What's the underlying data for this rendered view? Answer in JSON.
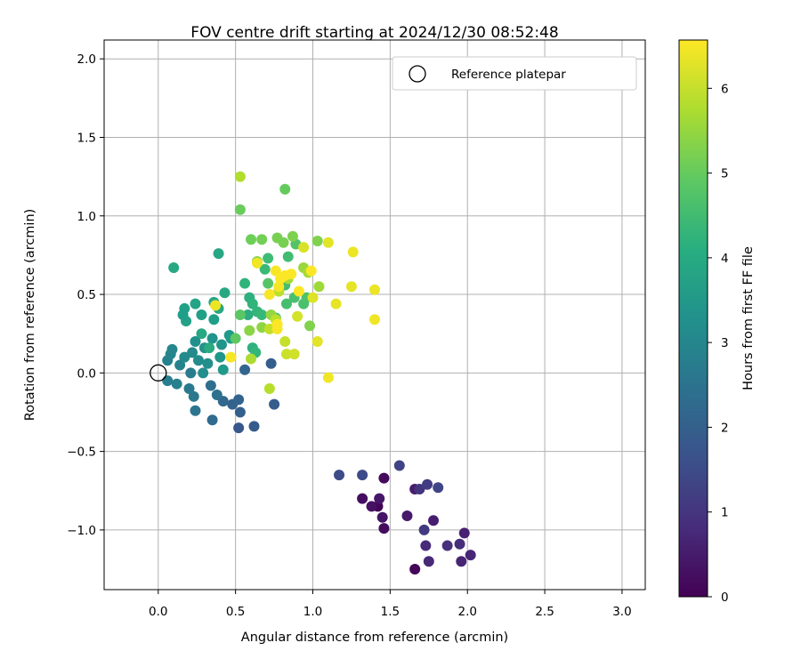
{
  "chart_data": {
    "type": "scatter",
    "title": "FOV centre drift starting at 2024/12/30 08:52:48",
    "xlabel": "Angular distance from reference (arcmin)",
    "ylabel": "Rotation from reference (arcmin)",
    "xlim": [
      -0.35,
      3.15
    ],
    "ylim": [
      -1.38,
      2.12
    ],
    "xticks": [
      {
        "value": 0.0,
        "label": "0.0"
      },
      {
        "value": 0.5,
        "label": "0.5"
      },
      {
        "value": 1.0,
        "label": "1.0"
      },
      {
        "value": 1.5,
        "label": "1.5"
      },
      {
        "value": 2.0,
        "label": "2.0"
      },
      {
        "value": 2.5,
        "label": "2.5"
      },
      {
        "value": 3.0,
        "label": "3.0"
      }
    ],
    "yticks": [
      {
        "value": -1.0,
        "label": "−1.0"
      },
      {
        "value": -0.5,
        "label": "−0.5"
      },
      {
        "value": 0.0,
        "label": "0.0"
      },
      {
        "value": 0.5,
        "label": "0.5"
      },
      {
        "value": 1.0,
        "label": "1.0"
      },
      {
        "value": 1.5,
        "label": "1.5"
      },
      {
        "value": 2.0,
        "label": "2.0"
      }
    ],
    "grid": true,
    "legend": {
      "position": "top-right",
      "entries": [
        {
          "label": "Reference platepar",
          "marker": "open-circle"
        }
      ]
    },
    "reference_point": {
      "x": 0.0,
      "y": 0.0
    },
    "colorbar": {
      "label": "Hours from first FF file",
      "range": [
        0,
        6.57
      ],
      "ticks": [
        {
          "value": 0,
          "label": "0"
        },
        {
          "value": 1,
          "label": "1"
        },
        {
          "value": 2,
          "label": "2"
        },
        {
          "value": 3,
          "label": "3"
        },
        {
          "value": 4,
          "label": "4"
        },
        {
          "value": 5,
          "label": "5"
        },
        {
          "value": 6,
          "label": "6"
        }
      ],
      "colormap": "viridis"
    },
    "series": [
      {
        "color_by": "hours",
        "points": [
          {
            "x": 1.42,
            "y": -0.85,
            "c": 0.05
          },
          {
            "x": 1.66,
            "y": -1.25,
            "c": 0.1
          },
          {
            "x": 1.46,
            "y": -0.67,
            "c": 0.15
          },
          {
            "x": 1.46,
            "y": -0.99,
            "c": 0.2
          },
          {
            "x": 1.32,
            "y": -0.8,
            "c": 0.25
          },
          {
            "x": 1.38,
            "y": -0.85,
            "c": 0.3
          },
          {
            "x": 1.45,
            "y": -0.92,
            "c": 0.35
          },
          {
            "x": 1.43,
            "y": -0.8,
            "c": 0.4
          },
          {
            "x": 1.61,
            "y": -0.91,
            "c": 0.45
          },
          {
            "x": 1.66,
            "y": -0.74,
            "c": 0.5
          },
          {
            "x": 1.78,
            "y": -0.94,
            "c": 0.55
          },
          {
            "x": 1.98,
            "y": -1.02,
            "c": 0.6
          },
          {
            "x": 1.96,
            "y": -1.2,
            "c": 0.65
          },
          {
            "x": 2.02,
            "y": -1.16,
            "c": 0.7
          },
          {
            "x": 1.75,
            "y": -1.2,
            "c": 0.75
          },
          {
            "x": 1.73,
            "y": -1.1,
            "c": 0.8
          },
          {
            "x": 1.95,
            "y": -1.09,
            "c": 0.85
          },
          {
            "x": 1.87,
            "y": -1.1,
            "c": 0.9
          },
          {
            "x": 1.69,
            "y": -0.74,
            "c": 1.0
          },
          {
            "x": 1.72,
            "y": -1.0,
            "c": 1.1
          },
          {
            "x": 1.74,
            "y": -0.71,
            "c": 1.15
          },
          {
            "x": 1.56,
            "y": -0.59,
            "c": 1.3
          },
          {
            "x": 1.81,
            "y": -0.73,
            "c": 1.35
          },
          {
            "x": 1.32,
            "y": -0.65,
            "c": 1.45
          },
          {
            "x": 1.17,
            "y": -0.65,
            "c": 1.5
          },
          {
            "x": 0.52,
            "y": -0.35,
            "c": 1.8
          },
          {
            "x": 0.62,
            "y": -0.34,
            "c": 1.85
          },
          {
            "x": 0.53,
            "y": -0.25,
            "c": 2.0
          },
          {
            "x": 0.48,
            "y": -0.2,
            "c": 2.05
          },
          {
            "x": 0.52,
            "y": -0.17,
            "c": 2.1
          },
          {
            "x": 0.56,
            "y": 0.02,
            "c": 2.15
          },
          {
            "x": 0.75,
            "y": -0.2,
            "c": 1.9
          },
          {
            "x": 0.73,
            "y": 0.06,
            "c": 1.95
          },
          {
            "x": 0.42,
            "y": -0.18,
            "c": 2.2
          },
          {
            "x": 0.35,
            "y": -0.3,
            "c": 2.3
          },
          {
            "x": 0.34,
            "y": -0.08,
            "c": 2.4
          },
          {
            "x": 0.38,
            "y": -0.14,
            "c": 2.45
          },
          {
            "x": 0.24,
            "y": -0.24,
            "c": 2.55
          },
          {
            "x": 0.23,
            "y": -0.15,
            "c": 2.6
          },
          {
            "x": 0.2,
            "y": -0.1,
            "c": 2.7
          },
          {
            "x": 0.21,
            "y": 0.0,
            "c": 2.75
          },
          {
            "x": 0.06,
            "y": -0.05,
            "c": 2.8
          },
          {
            "x": 0.12,
            "y": -0.07,
            "c": 2.85
          },
          {
            "x": 0.06,
            "y": 0.08,
            "c": 2.9
          },
          {
            "x": 0.14,
            "y": 0.05,
            "c": 2.95
          },
          {
            "x": 0.08,
            "y": 0.12,
            "c": 3.0
          },
          {
            "x": 0.09,
            "y": 0.15,
            "c": 3.05
          },
          {
            "x": 0.17,
            "y": 0.1,
            "c": 3.1
          },
          {
            "x": 0.22,
            "y": 0.13,
            "c": 3.15
          },
          {
            "x": 0.26,
            "y": 0.08,
            "c": 3.2
          },
          {
            "x": 0.29,
            "y": 0.0,
            "c": 3.25
          },
          {
            "x": 0.32,
            "y": 0.06,
            "c": 3.25
          },
          {
            "x": 0.24,
            "y": 0.2,
            "c": 3.3
          },
          {
            "x": 0.3,
            "y": 0.16,
            "c": 3.35
          },
          {
            "x": 0.35,
            "y": 0.22,
            "c": 3.4
          },
          {
            "x": 0.41,
            "y": 0.18,
            "c": 3.4
          },
          {
            "x": 0.4,
            "y": 0.1,
            "c": 3.45
          },
          {
            "x": 0.46,
            "y": 0.24,
            "c": 3.5
          },
          {
            "x": 0.42,
            "y": 0.02,
            "c": 3.55
          },
          {
            "x": 0.47,
            "y": 0.22,
            "c": 3.6
          },
          {
            "x": 0.36,
            "y": 0.34,
            "c": 3.65
          },
          {
            "x": 0.28,
            "y": 0.37,
            "c": 3.7
          },
          {
            "x": 0.18,
            "y": 0.33,
            "c": 3.75
          },
          {
            "x": 0.17,
            "y": 0.41,
            "c": 3.7
          },
          {
            "x": 0.16,
            "y": 0.37,
            "c": 3.65
          },
          {
            "x": 0.24,
            "y": 0.44,
            "c": 3.8
          },
          {
            "x": 0.36,
            "y": 0.45,
            "c": 3.85
          },
          {
            "x": 0.39,
            "y": 0.41,
            "c": 3.9
          },
          {
            "x": 0.43,
            "y": 0.51,
            "c": 3.95
          },
          {
            "x": 0.1,
            "y": 0.67,
            "c": 3.95
          },
          {
            "x": 0.39,
            "y": 0.76,
            "c": 3.9
          },
          {
            "x": 0.28,
            "y": 0.25,
            "c": 3.95
          },
          {
            "x": 0.33,
            "y": 0.16,
            "c": 4.0
          },
          {
            "x": 0.58,
            "y": 0.37,
            "c": 4.1
          },
          {
            "x": 0.59,
            "y": 0.48,
            "c": 4.15
          },
          {
            "x": 0.61,
            "y": 0.16,
            "c": 4.2
          },
          {
            "x": 0.56,
            "y": 0.57,
            "c": 4.25
          },
          {
            "x": 0.61,
            "y": 0.44,
            "c": 4.25
          },
          {
            "x": 0.64,
            "y": 0.39,
            "c": 4.3
          },
          {
            "x": 0.63,
            "y": 0.13,
            "c": 4.35
          },
          {
            "x": 0.67,
            "y": 0.37,
            "c": 4.4
          },
          {
            "x": 0.69,
            "y": 0.66,
            "c": 4.45
          },
          {
            "x": 0.71,
            "y": 0.73,
            "c": 4.5
          },
          {
            "x": 0.76,
            "y": 0.35,
            "c": 4.5
          },
          {
            "x": 0.82,
            "y": 0.56,
            "c": 4.55
          },
          {
            "x": 0.84,
            "y": 0.74,
            "c": 4.55
          },
          {
            "x": 0.83,
            "y": 0.44,
            "c": 4.6
          },
          {
            "x": 0.88,
            "y": 0.48,
            "c": 4.65
          },
          {
            "x": 0.94,
            "y": 0.44,
            "c": 4.65
          },
          {
            "x": 0.96,
            "y": 0.48,
            "c": 4.7
          },
          {
            "x": 0.89,
            "y": 0.82,
            "c": 4.75
          },
          {
            "x": 0.71,
            "y": 0.57,
            "c": 4.8
          },
          {
            "x": 0.53,
            "y": 0.37,
            "c": 4.85
          },
          {
            "x": 0.5,
            "y": 0.22,
            "c": 4.9
          },
          {
            "x": 0.82,
            "y": 1.17,
            "c": 5.0
          },
          {
            "x": 0.53,
            "y": 1.04,
            "c": 5.05
          },
          {
            "x": 0.6,
            "y": 0.85,
            "c": 5.1
          },
          {
            "x": 0.67,
            "y": 0.85,
            "c": 5.15
          },
          {
            "x": 0.77,
            "y": 0.86,
            "c": 5.2
          },
          {
            "x": 0.81,
            "y": 0.83,
            "c": 5.2
          },
          {
            "x": 0.87,
            "y": 0.87,
            "c": 5.25
          },
          {
            "x": 0.98,
            "y": 0.3,
            "c": 5.3
          },
          {
            "x": 1.03,
            "y": 0.84,
            "c": 5.3
          },
          {
            "x": 0.64,
            "y": 0.71,
            "c": 5.35
          },
          {
            "x": 0.59,
            "y": 0.27,
            "c": 5.4
          },
          {
            "x": 0.67,
            "y": 0.29,
            "c": 5.45
          },
          {
            "x": 0.73,
            "y": 0.37,
            "c": 5.5
          },
          {
            "x": 0.78,
            "y": 0.52,
            "c": 5.55
          },
          {
            "x": 0.94,
            "y": 0.67,
            "c": 5.55
          },
          {
            "x": 1.04,
            "y": 0.55,
            "c": 5.6
          },
          {
            "x": 0.84,
            "y": 0.6,
            "c": 5.65
          },
          {
            "x": 0.97,
            "y": 0.64,
            "c": 5.7
          },
          {
            "x": 0.6,
            "y": 0.09,
            "c": 5.75
          },
          {
            "x": 0.53,
            "y": 1.25,
            "c": 5.8
          },
          {
            "x": 0.72,
            "y": -0.1,
            "c": 5.85
          },
          {
            "x": 0.76,
            "y": 0.34,
            "c": 5.9
          },
          {
            "x": 0.78,
            "y": 0.52,
            "c": 5.9
          },
          {
            "x": 0.72,
            "y": 0.28,
            "c": 5.95
          },
          {
            "x": 0.82,
            "y": 0.2,
            "c": 6.0
          },
          {
            "x": 0.83,
            "y": 0.12,
            "c": 6.05
          },
          {
            "x": 0.88,
            "y": 0.12,
            "c": 6.1
          },
          {
            "x": 0.9,
            "y": 0.36,
            "c": 6.15
          },
          {
            "x": 0.94,
            "y": 0.8,
            "c": 6.2
          },
          {
            "x": 1.0,
            "y": 0.48,
            "c": 6.25
          },
          {
            "x": 1.03,
            "y": 0.2,
            "c": 6.3
          },
          {
            "x": 1.1,
            "y": 0.83,
            "c": 6.3
          },
          {
            "x": 1.15,
            "y": 0.44,
            "c": 6.35
          },
          {
            "x": 1.25,
            "y": 0.55,
            "c": 6.35
          },
          {
            "x": 1.26,
            "y": 0.77,
            "c": 6.4
          },
          {
            "x": 1.4,
            "y": 0.53,
            "c": 6.4
          },
          {
            "x": 1.4,
            "y": 0.34,
            "c": 6.45
          },
          {
            "x": 1.1,
            "y": -0.03,
            "c": 6.45
          },
          {
            "x": 0.47,
            "y": 0.1,
            "c": 6.5
          },
          {
            "x": 0.64,
            "y": 0.7,
            "c": 6.45
          },
          {
            "x": 0.72,
            "y": 0.5,
            "c": 6.5
          },
          {
            "x": 0.76,
            "y": 0.65,
            "c": 6.5
          },
          {
            "x": 0.78,
            "y": 0.55,
            "c": 6.5
          },
          {
            "x": 0.79,
            "y": 0.6,
            "c": 6.55
          },
          {
            "x": 0.82,
            "y": 0.62,
            "c": 6.55
          },
          {
            "x": 0.86,
            "y": 0.63,
            "c": 6.55
          },
          {
            "x": 0.91,
            "y": 0.52,
            "c": 6.55
          },
          {
            "x": 0.99,
            "y": 0.65,
            "c": 6.55
          },
          {
            "x": 0.77,
            "y": 0.28,
            "c": 6.5
          },
          {
            "x": 0.77,
            "y": 0.31,
            "c": 6.55
          },
          {
            "x": 0.37,
            "y": 0.43,
            "c": 6.4
          }
        ]
      }
    ]
  }
}
